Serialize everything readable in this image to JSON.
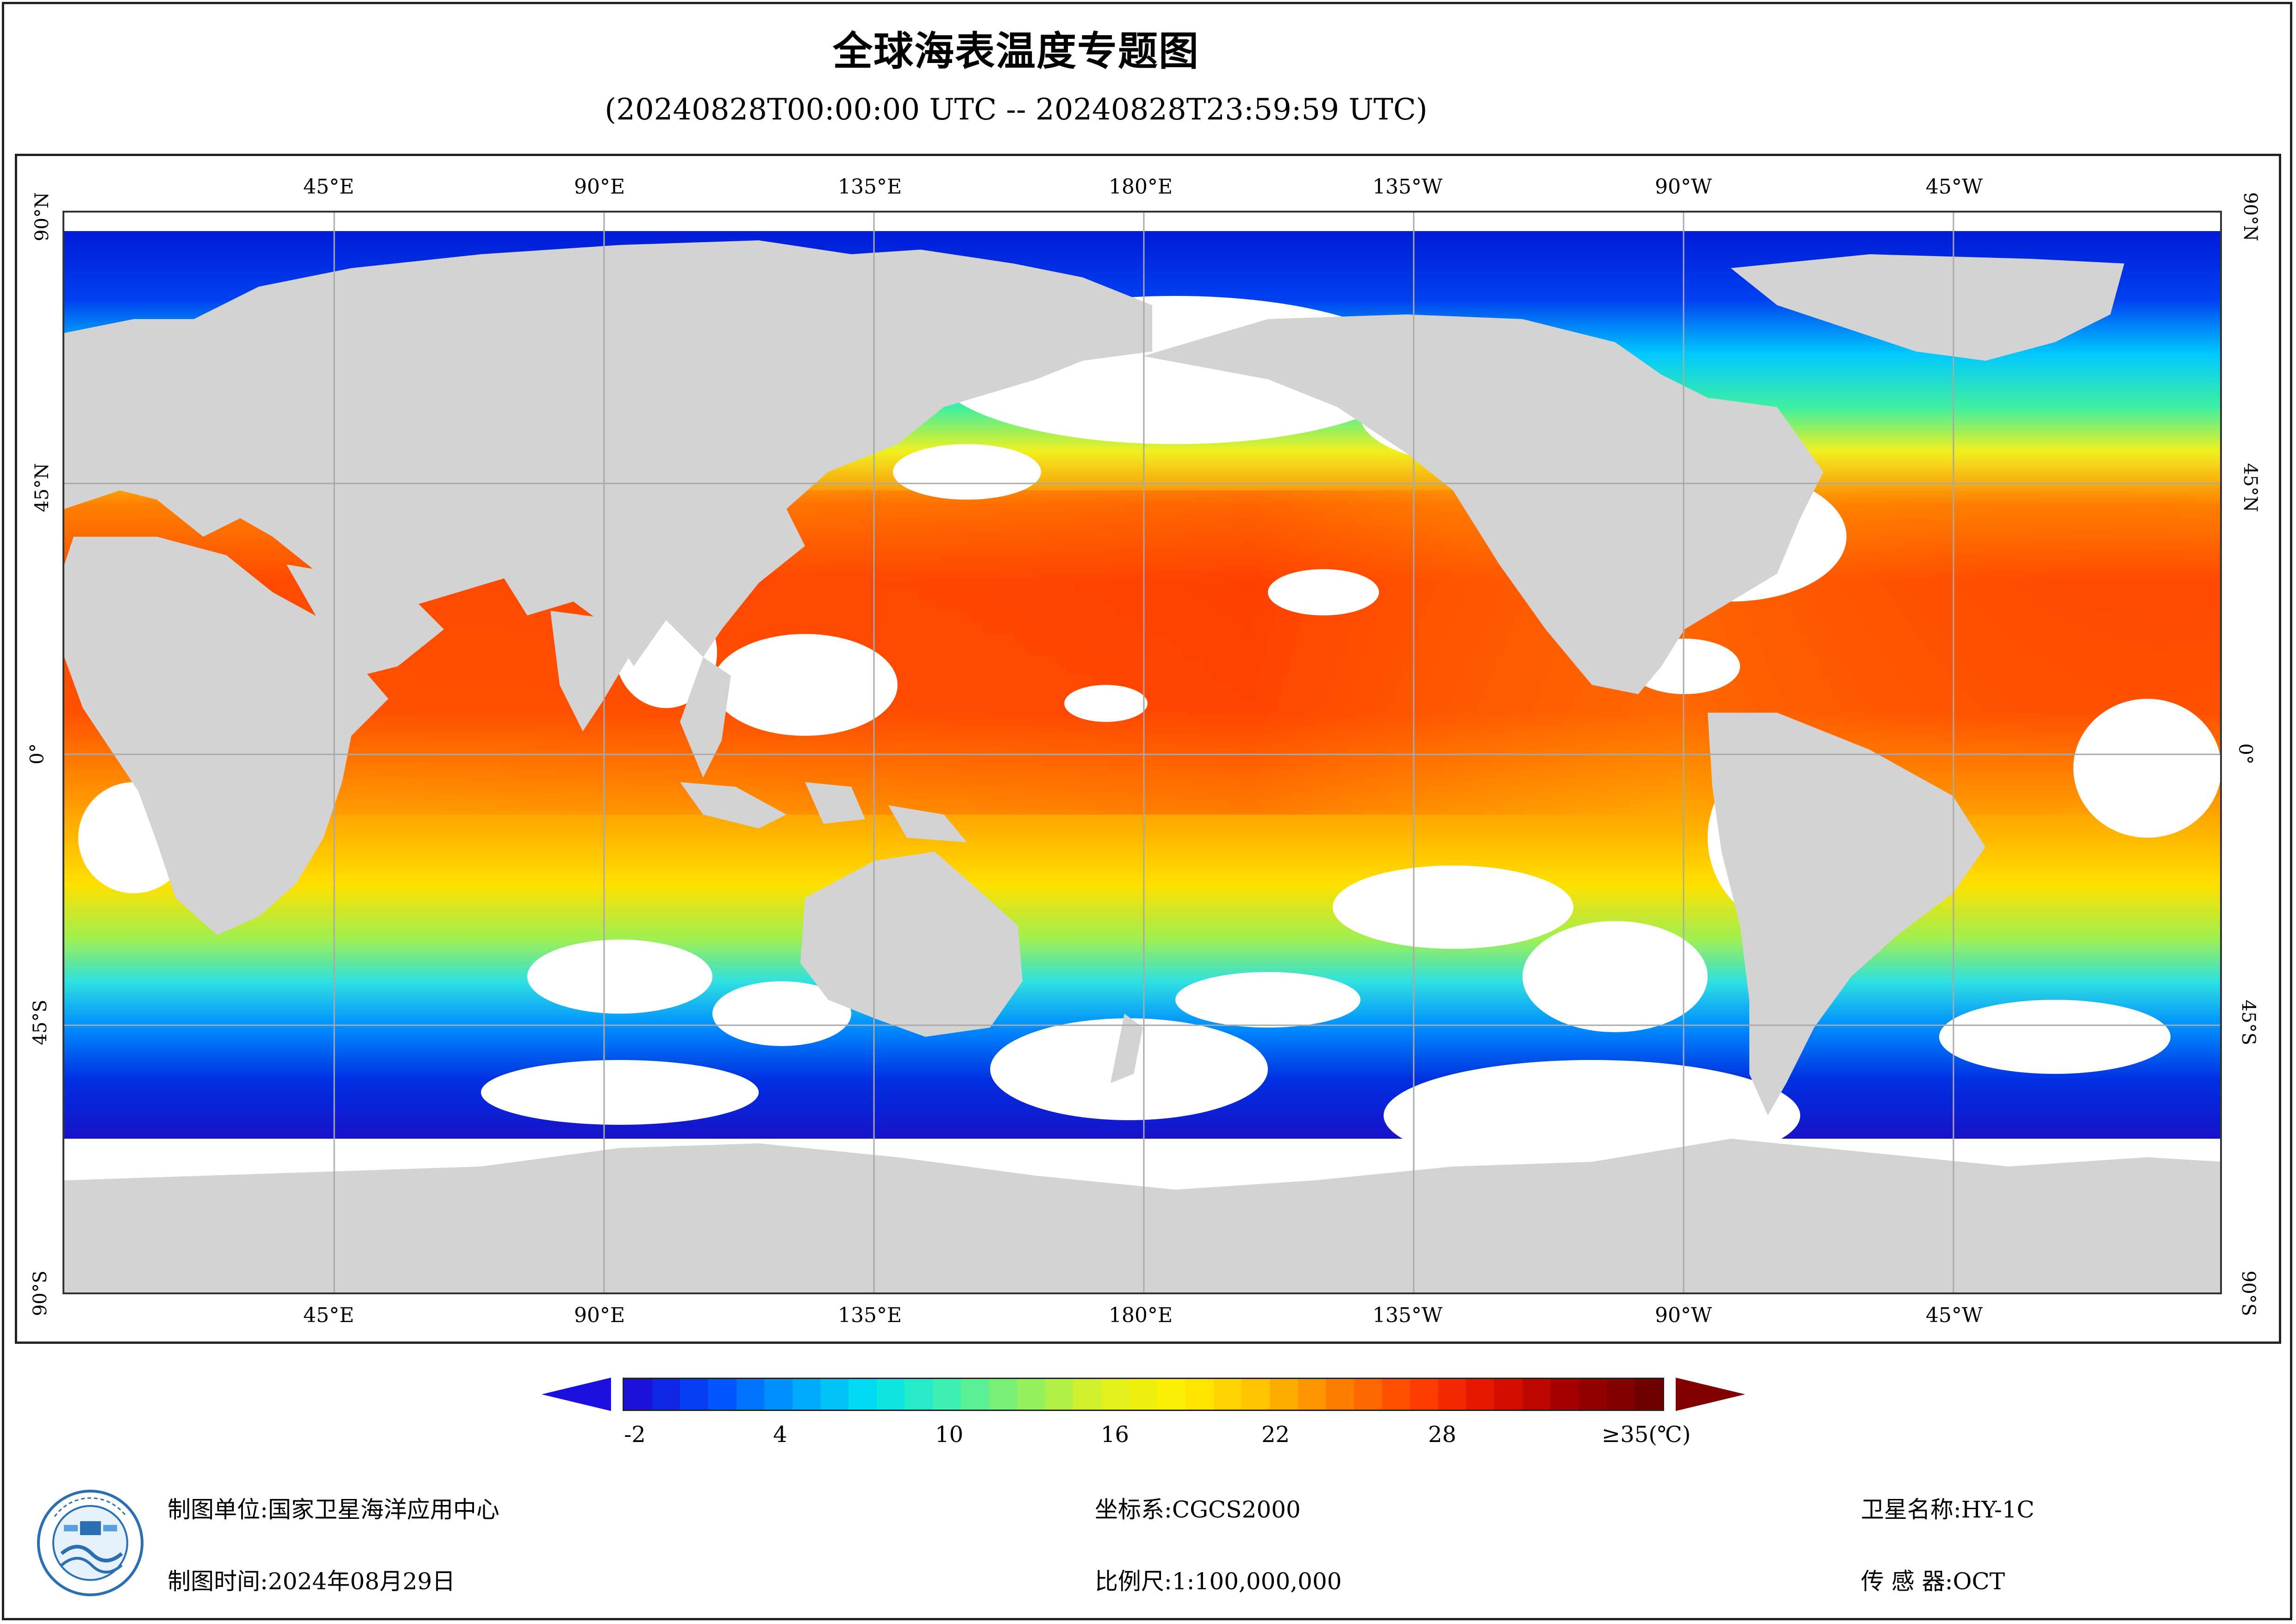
{
  "title": "全球海表温度专题图",
  "subtitle": "(20240828T00:00:00 UTC -- 20240828T23:59:59 UTC)",
  "axes": {
    "top_lon": [
      "45°E",
      "90°E",
      "135°E",
      "180°E",
      "135°W",
      "90°W",
      "45°W"
    ],
    "bottom_lon": [
      "45°E",
      "90°E",
      "135°E",
      "180°E",
      "135°W",
      "90°W",
      "45°W"
    ],
    "left_lat": [
      "90°N",
      "45°N",
      "0°",
      "45°S",
      "90°S"
    ],
    "right_lat": [
      "90°N",
      "45°N",
      "0°",
      "45°S",
      "90°S"
    ]
  },
  "legend": {
    "min": -2,
    "max": 35,
    "tick_labels": [
      "-2",
      "4",
      "10",
      "16",
      "22",
      "28",
      "≥35(℃)"
    ],
    "colors": [
      "#1a10d8",
      "#0050ff",
      "#00a0ff",
      "#00e0f0",
      "#40f0b0",
      "#90f060",
      "#e0f020",
      "#fff000",
      "#ffc000",
      "#ff8000",
      "#ff4000",
      "#e01000",
      "#a00000",
      "#700000"
    ]
  },
  "map_colors": {
    "land": "#d3d3d3",
    "no_data": "#ffffff",
    "grid": "#a9a9a9"
  },
  "footer": {
    "unit_label": "制图单位:国家卫星海洋应用中心",
    "time_label": "制图时间:2024年08月29日",
    "crs_label": "坐标系:CGCS2000",
    "scale_label": "比例尺:1:100,000,000",
    "satellite_label": "卫星名称:HY-1C",
    "sensor_label": "传 感 器:OCT"
  },
  "logo": {
    "icon": "nsoas-logo-icon"
  }
}
